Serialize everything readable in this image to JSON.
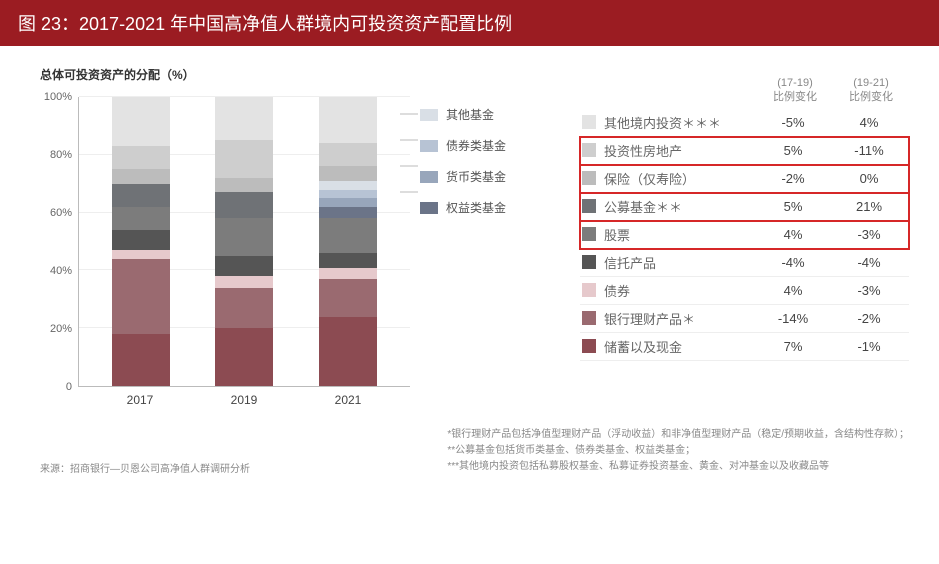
{
  "title": "图 23：2017-2021 年中国高净值人群境内可投资资产配置比例",
  "subtitle": "总体可投资资产的分配（%）",
  "source_label": "来源：招商银行—贝恩公司高净值人群调研分析",
  "footnotes": [
    "*银行理财产品包括净值型理财产品（浮动收益）和非净值型理财产品（稳定/预期收益，含结构性存款）；",
    "**公募基金包括货币类基金、债券类基金、权益类基金；",
    "***其他境内投资包括私募股权基金、私募证券投资基金、黄金、对冲基金以及收藏品等"
  ],
  "chart": {
    "type": "stacked-bar",
    "ylabel_suffix": "%",
    "ylim": [
      0,
      100
    ],
    "yticks": [
      0,
      20,
      40,
      60,
      80,
      100
    ],
    "categories": [
      "2017",
      "2019",
      "2021"
    ],
    "stack_order": [
      "储蓄以及现金",
      "银行理财产品",
      "债券",
      "信托产品",
      "股票",
      "公募基金",
      "保险（仅寿险）",
      "投资性房地产",
      "其他境内投资"
    ],
    "series": {
      "储蓄以及现金": {
        "color": "#8c4b52",
        "values": [
          18,
          20,
          24
        ]
      },
      "银行理财产品": {
        "color": "#9a6a70",
        "values": [
          26,
          14,
          13
        ]
      },
      "债券": {
        "color": "#e6c9cc",
        "values": [
          3,
          4,
          4
        ]
      },
      "信托产品": {
        "color": "#555555",
        "values": [
          7,
          7,
          5
        ]
      },
      "股票": {
        "color": "#7c7c7c",
        "values": [
          8,
          13,
          12
        ]
      },
      "公募基金": {
        "color": "#6f7276",
        "values": [
          8,
          9,
          13
        ]
      },
      "保险（仅寿险）": {
        "color": "#bcbcbc",
        "values": [
          5,
          5,
          5
        ]
      },
      "投资性房地产": {
        "color": "#cecece",
        "values": [
          8,
          13,
          8
        ]
      },
      "其他境内投资": {
        "color": "#e3e3e3",
        "values": [
          17,
          15,
          16
        ]
      }
    },
    "fund_breakdown_legend": [
      {
        "label": "其他基金",
        "color": "#d9dfe6"
      },
      {
        "label": "债券类基金",
        "color": "#b7c3d4"
      },
      {
        "label": "货币类基金",
        "color": "#98a6bb"
      },
      {
        "label": "权益类基金",
        "color": "#6b7488"
      }
    ],
    "fund_breakdown_2021": [
      3,
      3,
      3,
      4
    ],
    "grid_color": "#eeeeee",
    "axis_color": "#bbbbbb",
    "background_color": "#ffffff",
    "tick_fontsize": 11,
    "label_fontsize": 12
  },
  "table": {
    "header": {
      "col1": "(17-19)",
      "col1b": "比例变化",
      "col2": "(19-21)",
      "col2b": "比例变化"
    },
    "rows": [
      {
        "swatch": "#e3e3e3",
        "name": "其他境内投资＊＊＊",
        "v1": "-5%",
        "v2": "4%",
        "hl": false
      },
      {
        "swatch": "#cecece",
        "name": "投资性房地产",
        "v1": "5%",
        "v2": "-11%",
        "hl": true
      },
      {
        "swatch": "#bcbcbc",
        "name": "保险（仅寿险）",
        "v1": "-2%",
        "v2": "0%",
        "hl": true
      },
      {
        "swatch": "#6f7276",
        "name": "公募基金＊＊",
        "v1": "5%",
        "v2": "21%",
        "hl": true
      },
      {
        "swatch": "#7c7c7c",
        "name": "股票",
        "v1": "4%",
        "v2": "-3%",
        "hl": true
      },
      {
        "swatch": "#555555",
        "name": "信托产品",
        "v1": "-4%",
        "v2": "-4%",
        "hl": false
      },
      {
        "swatch": "#e6c9cc",
        "name": "债券",
        "v1": "4%",
        "v2": "-3%",
        "hl": false
      },
      {
        "swatch": "#9a6a70",
        "name": "银行理财产品＊",
        "v1": "-14%",
        "v2": "-2%",
        "hl": false
      },
      {
        "swatch": "#8c4b52",
        "name": "储蓄以及现金",
        "v1": "7%",
        "v2": "-1%",
        "hl": false
      }
    ]
  },
  "title_bar_bg": "#9b1c22",
  "highlight_border": "#d62728"
}
